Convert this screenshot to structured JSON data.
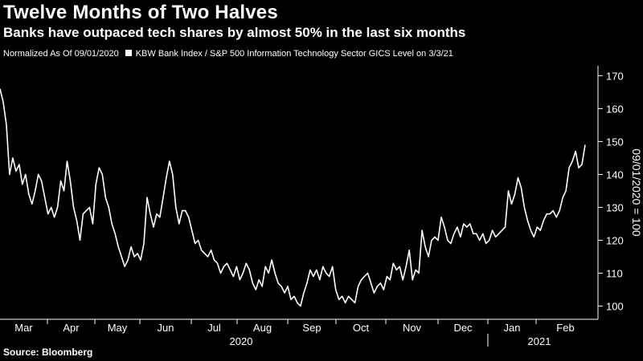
{
  "title": "Twelve Months of Two Halves",
  "subtitle": "Banks have outpaced tech shares by almost 50% in the last six months",
  "legend": {
    "normalized_label": "Normalized As Of 09/01/2020",
    "series_label": "KBW Bank Index / S&P 500 Information Technology Sector GICS Level on 3/3/21"
  },
  "source": "Source: Bloomberg",
  "colors": {
    "background": "#000000",
    "line": "#ffffff",
    "axis": "#ffffff"
  },
  "chart_data": {
    "type": "line",
    "title": "Twelve Months of Two Halves",
    "subtitle": "Banks have outpaced tech shares by almost 50% in the last six months",
    "ylabel": "09/01/2020 = 100",
    "ylim": [
      96,
      173
    ],
    "yticks": [
      100,
      110,
      120,
      130,
      140,
      150,
      160,
      170
    ],
    "y_axis_side": "right",
    "x_axis": {
      "months": [
        "Mar",
        "Apr",
        "May",
        "Jun",
        "Jul",
        "Aug",
        "Sep",
        "Oct",
        "Nov",
        "Dec",
        "Jan",
        "Feb"
      ],
      "years": [
        "2020",
        "2021"
      ]
    },
    "grid": false,
    "series": [
      {
        "name": "KBW Bank Index / S&P 500 Information Technology Sector GICS Level on 3/3/21",
        "values": [
          166,
          162,
          155,
          140,
          145,
          141,
          143,
          137,
          140,
          134,
          131,
          135,
          140,
          138,
          133,
          128,
          130,
          127,
          130,
          138,
          135,
          144,
          138,
          130,
          126,
          120,
          128,
          129,
          130,
          125,
          137,
          142,
          140,
          133,
          130,
          125,
          122,
          118,
          115,
          112,
          114,
          118,
          115,
          116,
          114,
          119,
          133,
          128,
          124,
          128,
          127,
          133,
          139,
          144,
          140,
          130,
          125,
          129,
          129,
          127,
          123,
          119,
          120,
          117,
          116,
          115,
          117,
          114,
          113,
          110,
          112,
          113,
          111,
          109,
          112,
          108,
          110,
          113,
          111,
          107,
          105,
          108,
          106,
          112,
          110,
          114,
          110,
          107,
          106,
          104,
          106,
          102,
          103,
          101,
          100,
          104,
          107,
          111,
          109,
          111,
          108,
          112,
          110,
          109,
          112,
          105,
          102,
          103,
          101,
          103,
          102,
          101,
          106,
          108,
          109,
          110,
          107,
          104,
          106,
          107,
          105,
          109,
          108,
          113,
          111,
          112,
          108,
          112,
          117,
          108,
          111,
          110,
          123,
          118,
          115,
          120,
          121,
          120,
          127,
          124,
          120,
          119,
          122,
          124,
          121,
          125,
          124,
          125,
          122,
          122,
          120,
          122,
          119,
          120,
          123,
          121,
          122,
          123,
          124,
          135,
          131,
          134,
          139,
          136,
          130,
          126,
          123,
          121,
          124,
          123,
          126,
          128,
          128,
          129,
          127,
          129,
          133,
          135,
          142,
          144,
          147,
          142,
          143,
          149
        ]
      }
    ]
  }
}
